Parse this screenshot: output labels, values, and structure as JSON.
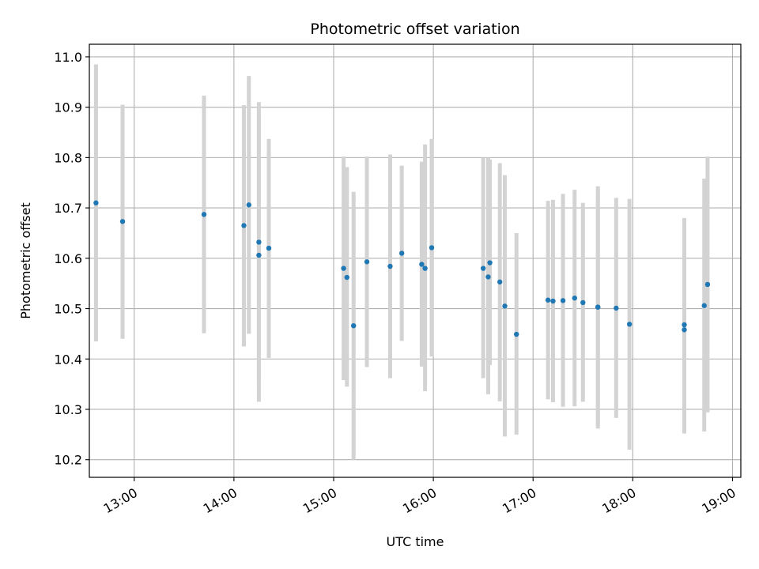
{
  "chart_data": {
    "type": "scatter",
    "title": "Photometric offset variation",
    "xlabel": "UTC time",
    "ylabel": "Photometric offset",
    "grid": true,
    "xlim": [
      "12:33",
      "19:05"
    ],
    "ylim": [
      10.165,
      11.025
    ],
    "x_ticks": [
      "13:00",
      "14:00",
      "15:00",
      "16:00",
      "17:00",
      "18:00",
      "19:00"
    ],
    "y_ticks": [
      10.2,
      10.3,
      10.4,
      10.5,
      10.6,
      10.7,
      10.8,
      10.9,
      11.0
    ],
    "point_color": "#1f77b4",
    "errorbar_color": "#d3d3d3",
    "points": [
      {
        "x": "12:37",
        "y": 10.71,
        "ylow": 10.435,
        "yhigh": 10.985
      },
      {
        "x": "12:53",
        "y": 10.673,
        "ylow": 10.44,
        "yhigh": 10.905
      },
      {
        "x": "13:42",
        "y": 10.687,
        "ylow": 10.451,
        "yhigh": 10.923
      },
      {
        "x": "14:06",
        "y": 10.665,
        "ylow": 10.425,
        "yhigh": 10.904
      },
      {
        "x": "14:09",
        "y": 10.706,
        "ylow": 10.45,
        "yhigh": 10.962
      },
      {
        "x": "14:15",
        "y": 10.632,
        "ylow": 10.354,
        "yhigh": 10.91
      },
      {
        "x": "14:15",
        "y": 10.606,
        "ylow": 10.315,
        "yhigh": 10.898
      },
      {
        "x": "14:21",
        "y": 10.62,
        "ylow": 10.402,
        "yhigh": 10.837
      },
      {
        "x": "15:06",
        "y": 10.58,
        "ylow": 10.358,
        "yhigh": 10.802
      },
      {
        "x": "15:08",
        "y": 10.562,
        "ylow": 10.345,
        "yhigh": 10.781
      },
      {
        "x": "15:12",
        "y": 10.466,
        "ylow": 10.2,
        "yhigh": 10.732
      },
      {
        "x": "15:20",
        "y": 10.593,
        "ylow": 10.384,
        "yhigh": 10.802
      },
      {
        "x": "15:34",
        "y": 10.584,
        "ylow": 10.362,
        "yhigh": 10.806
      },
      {
        "x": "15:41",
        "y": 10.61,
        "ylow": 10.436,
        "yhigh": 10.784
      },
      {
        "x": "15:53",
        "y": 10.588,
        "ylow": 10.385,
        "yhigh": 10.792
      },
      {
        "x": "15:55",
        "y": 10.58,
        "ylow": 10.336,
        "yhigh": 10.826
      },
      {
        "x": "15:59",
        "y": 10.621,
        "ylow": 10.405,
        "yhigh": 10.837
      },
      {
        "x": "16:30",
        "y": 10.58,
        "ylow": 10.362,
        "yhigh": 10.8
      },
      {
        "x": "16:33",
        "y": 10.563,
        "ylow": 10.33,
        "yhigh": 10.8
      },
      {
        "x": "16:34",
        "y": 10.591,
        "ylow": 10.388,
        "yhigh": 10.796
      },
      {
        "x": "16:40",
        "y": 10.553,
        "ylow": 10.316,
        "yhigh": 10.789
      },
      {
        "x": "16:43",
        "y": 10.505,
        "ylow": 10.246,
        "yhigh": 10.765
      },
      {
        "x": "16:50",
        "y": 10.449,
        "ylow": 10.25,
        "yhigh": 10.65
      },
      {
        "x": "17:09",
        "y": 10.517,
        "ylow": 10.32,
        "yhigh": 10.714
      },
      {
        "x": "17:12",
        "y": 10.515,
        "ylow": 10.314,
        "yhigh": 10.716
      },
      {
        "x": "17:18",
        "y": 10.516,
        "ylow": 10.305,
        "yhigh": 10.728
      },
      {
        "x": "17:25",
        "y": 10.521,
        "ylow": 10.306,
        "yhigh": 10.736
      },
      {
        "x": "17:30",
        "y": 10.512,
        "ylow": 10.315,
        "yhigh": 10.71
      },
      {
        "x": "17:39",
        "y": 10.503,
        "ylow": 10.269,
        "yhigh": 10.734
      },
      {
        "x": "17:39",
        "y": 10.503,
        "ylow": 10.262,
        "yhigh": 10.743
      },
      {
        "x": "17:50",
        "y": 10.501,
        "ylow": 10.283,
        "yhigh": 10.72
      },
      {
        "x": "17:58",
        "y": 10.469,
        "ylow": 10.22,
        "yhigh": 10.718
      },
      {
        "x": "18:31",
        "y": 10.468,
        "ylow": 10.256,
        "yhigh": 10.68
      },
      {
        "x": "18:31",
        "y": 10.458,
        "ylow": 10.252,
        "yhigh": 10.662
      },
      {
        "x": "18:43",
        "y": 10.506,
        "ylow": 10.256,
        "yhigh": 10.758
      },
      {
        "x": "18:45",
        "y": 10.548,
        "ylow": 10.294,
        "yhigh": 10.802
      }
    ]
  }
}
